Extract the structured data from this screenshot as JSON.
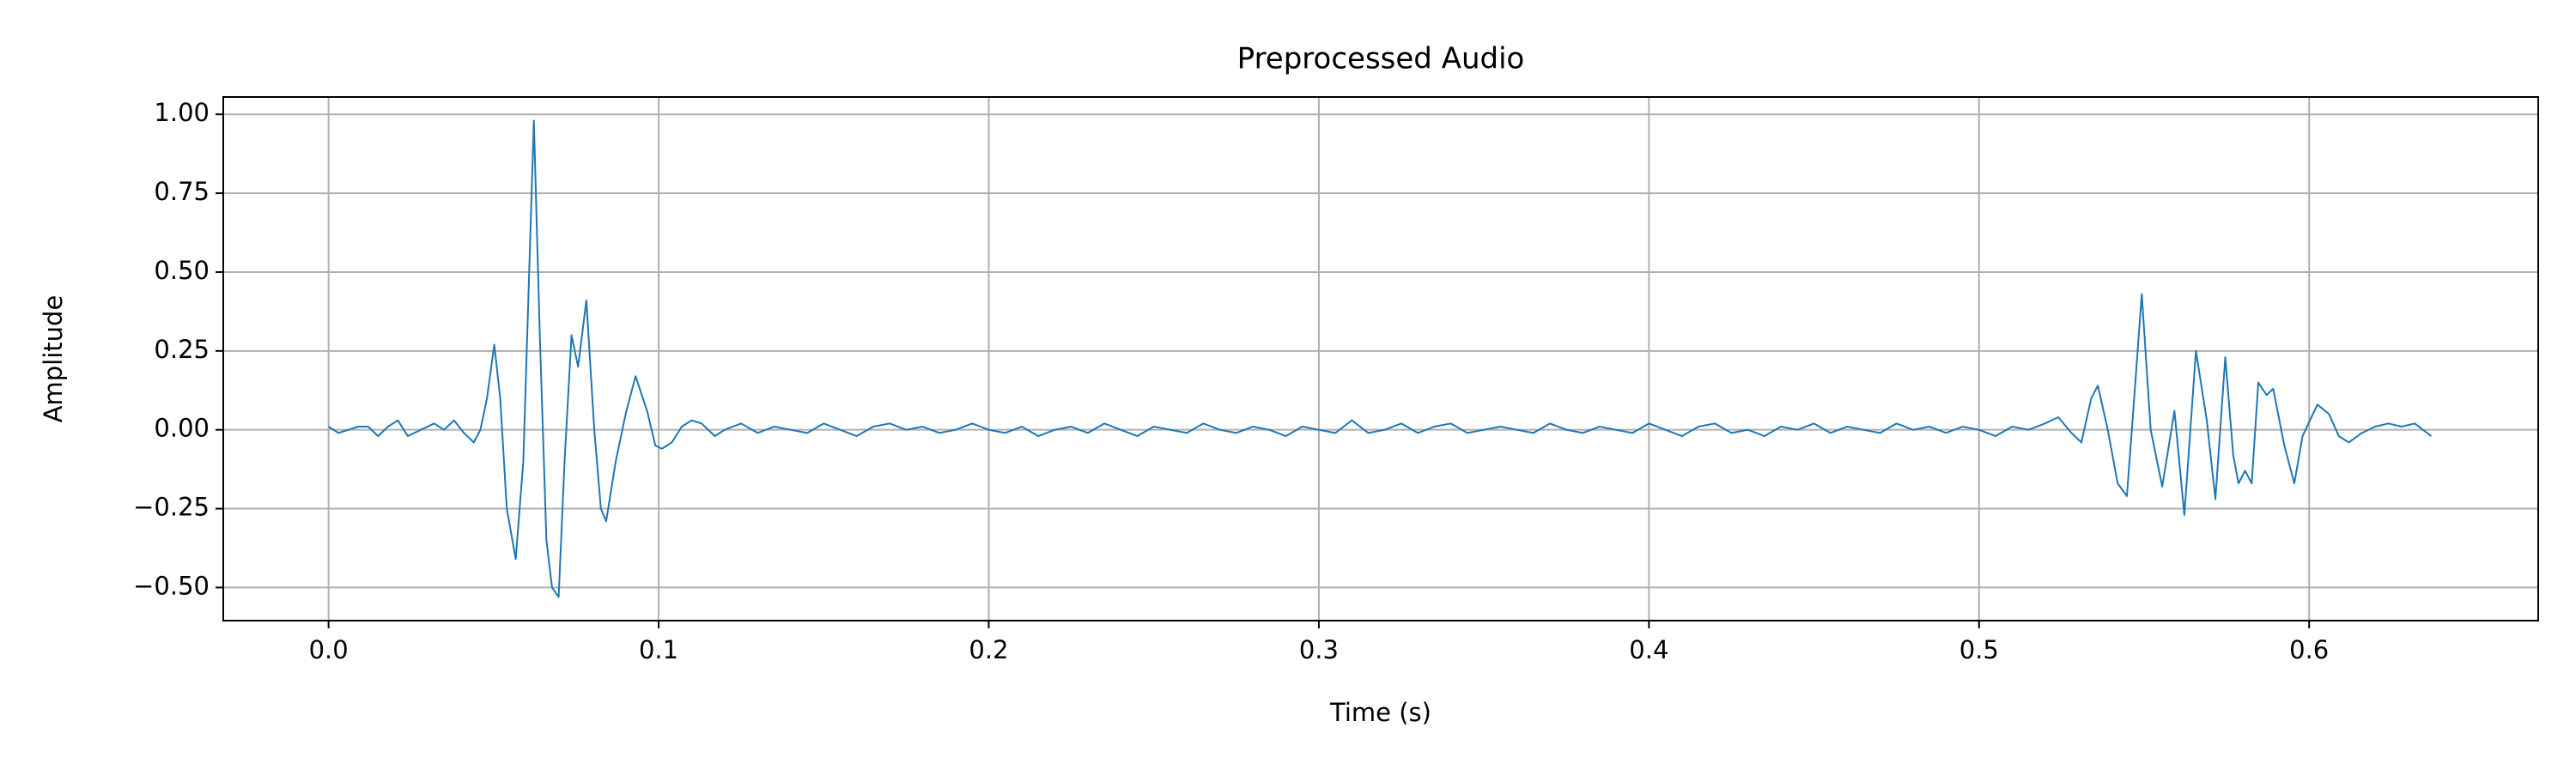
{
  "chart_data": {
    "type": "line",
    "title": "Preprocessed Audio",
    "xlabel": "Time (s)",
    "ylabel": "Amplitude",
    "color": "#1f77b4",
    "grid": true,
    "xlim": [
      -0.0319,
      0.6694
    ],
    "ylim": [
      -0.605,
      1.055
    ],
    "xticks": [
      {
        "value": 0,
        "label": "0.0"
      },
      {
        "value": 0.1,
        "label": "0.1"
      },
      {
        "value": 0.2,
        "label": "0.2"
      },
      {
        "value": 0.3,
        "label": "0.3"
      },
      {
        "value": 0.4,
        "label": "0.4"
      },
      {
        "value": 0.5,
        "label": "0.5"
      },
      {
        "value": 0.6,
        "label": "0.6"
      }
    ],
    "yticks": [
      {
        "value": -0.5,
        "label": "−0.50"
      },
      {
        "value": -0.25,
        "label": "−0.25"
      },
      {
        "value": 0,
        "label": "0.00"
      },
      {
        "value": 0.25,
        "label": "0.25"
      },
      {
        "value": 0.5,
        "label": "0.50"
      },
      {
        "value": 0.75,
        "label": "0.75"
      },
      {
        "value": 1,
        "label": "1.00"
      }
    ],
    "x": [
      0,
      0.003,
      0.006,
      0.009,
      0.012,
      0.015,
      0.018,
      0.021,
      0.024,
      0.028,
      0.032,
      0.035,
      0.038,
      0.041,
      0.044,
      0.046,
      0.048,
      0.0502,
      0.052,
      0.054,
      0.0567,
      0.059,
      0.0622,
      0.064,
      0.066,
      0.0677,
      0.0697,
      0.0715,
      0.0736,
      0.0756,
      0.0781,
      0.0805,
      0.0825,
      0.0841,
      0.087,
      0.09,
      0.093,
      0.0965,
      0.099,
      0.101,
      0.104,
      0.107,
      0.11,
      0.113,
      0.117,
      0.12,
      0.125,
      0.13,
      0.135,
      0.14,
      0.145,
      0.15,
      0.155,
      0.16,
      0.165,
      0.17,
      0.175,
      0.18,
      0.185,
      0.19,
      0.195,
      0.2,
      0.205,
      0.21,
      0.215,
      0.22,
      0.225,
      0.23,
      0.235,
      0.24,
      0.245,
      0.25,
      0.255,
      0.26,
      0.265,
      0.27,
      0.275,
      0.28,
      0.285,
      0.29,
      0.295,
      0.3,
      0.305,
      0.31,
      0.315,
      0.32,
      0.325,
      0.33,
      0.335,
      0.34,
      0.345,
      0.35,
      0.355,
      0.36,
      0.365,
      0.37,
      0.375,
      0.38,
      0.385,
      0.39,
      0.395,
      0.4,
      0.405,
      0.41,
      0.415,
      0.42,
      0.425,
      0.43,
      0.435,
      0.44,
      0.445,
      0.45,
      0.455,
      0.46,
      0.465,
      0.47,
      0.475,
      0.48,
      0.485,
      0.49,
      0.495,
      0.5,
      0.505,
      0.51,
      0.515,
      0.52,
      0.524,
      0.528,
      0.531,
      0.534,
      0.536,
      0.539,
      0.542,
      0.5448,
      0.547,
      0.5493,
      0.552,
      0.5555,
      0.5592,
      0.5622,
      0.5657,
      0.569,
      0.5716,
      0.5746,
      0.577,
      0.5786,
      0.5806,
      0.5826,
      0.5846,
      0.5871,
      0.5891,
      0.5925,
      0.5955,
      0.598,
      0.6025,
      0.606,
      0.609,
      0.612,
      0.616,
      0.62,
      0.624,
      0.628,
      0.632,
      0.637
    ],
    "values": [
      0.01,
      -0.01,
      0,
      0.01,
      0.01,
      -0.02,
      0.01,
      0.03,
      -0.02,
      0,
      0.02,
      0,
      0.03,
      -0.01,
      -0.04,
      0,
      0.1,
      0.27,
      0.1,
      -0.25,
      -0.41,
      -0.1,
      0.98,
      0.3,
      -0.35,
      -0.5,
      -0.53,
      -0.1,
      0.3,
      0.2,
      0.41,
      0,
      -0.25,
      -0.29,
      -0.1,
      0.05,
      0.17,
      0.06,
      -0.05,
      -0.06,
      -0.04,
      0.01,
      0.03,
      0.02,
      -0.02,
      0,
      0.02,
      -0.01,
      0.01,
      0,
      -0.01,
      0.02,
      0,
      -0.02,
      0.01,
      0.02,
      0,
      0.01,
      -0.01,
      0,
      0.02,
      0,
      -0.01,
      0.01,
      -0.02,
      0,
      0.01,
      -0.01,
      0.02,
      0,
      -0.02,
      0.01,
      0,
      -0.01,
      0.02,
      0,
      -0.01,
      0.01,
      0,
      -0.02,
      0.01,
      0,
      -0.01,
      0.03,
      -0.01,
      0,
      0.02,
      -0.01,
      0.01,
      0.02,
      -0.01,
      0,
      0.01,
      0,
      -0.01,
      0.02,
      0,
      -0.01,
      0.01,
      0,
      -0.01,
      0.02,
      0,
      -0.02,
      0.01,
      0.02,
      -0.01,
      0,
      -0.02,
      0.01,
      0,
      0.02,
      -0.01,
      0.01,
      0,
      -0.01,
      0.02,
      0,
      0.01,
      -0.01,
      0.01,
      0,
      -0.02,
      0.01,
      0,
      0.02,
      0.04,
      -0.01,
      -0.04,
      0.1,
      0.14,
      0,
      -0.17,
      -0.21,
      0.1,
      0.43,
      0,
      -0.18,
      0.06,
      -0.27,
      0.25,
      0.03,
      -0.22,
      0.23,
      -0.08,
      -0.17,
      -0.13,
      -0.17,
      0.15,
      0.11,
      0.13,
      -0.05,
      -0.17,
      -0.02,
      0.08,
      0.05,
      -0.02,
      -0.04,
      -0.01,
      0.01,
      0.02,
      0.01,
      0.02,
      -0.02
    ]
  }
}
